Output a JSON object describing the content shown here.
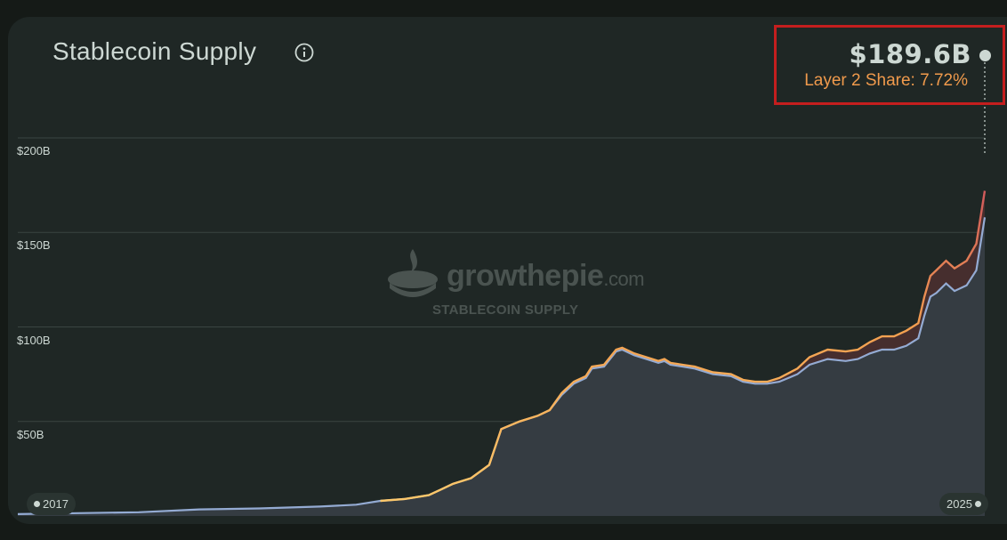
{
  "header": {
    "title": "Stablecoin Supply",
    "info_icon": "info-icon"
  },
  "highlight": {
    "value": "$189.6B",
    "layer2_share": "Layer 2 Share: 7.72%"
  },
  "watermark": {
    "brand": "growthepie",
    "brand_suffix": ".com",
    "subtitle": "STABLECOIN SUPPLY"
  },
  "timeline": {
    "start_label": "2017",
    "end_label": "2025"
  },
  "colors": {
    "background": "#1f2725",
    "text": "#cdd8d3",
    "ethereum_line": "#94abd3",
    "total_line_low": "#fdc86b",
    "total_line_high": "#d0595b",
    "share_text": "#f09a4c",
    "highlight_border": "#c41e1e"
  },
  "chart_data": {
    "type": "area",
    "title": "Stablecoin Supply",
    "ylim": [
      0,
      200
    ],
    "yunit": "$B",
    "yticks": [
      "$50B",
      "$100B",
      "$150B",
      "$200B"
    ],
    "ytick_values": [
      50,
      100,
      150,
      200
    ],
    "grid": true,
    "x_start_label": "2017",
    "x_end_label": "2025",
    "x": [
      2017.0,
      2017.5,
      2018.0,
      2018.5,
      2019.0,
      2019.5,
      2019.8,
      2020.0,
      2020.2,
      2020.4,
      2020.5,
      2020.6,
      2020.75,
      2020.9,
      2021.0,
      2021.15,
      2021.3,
      2021.4,
      2021.5,
      2021.6,
      2021.7,
      2021.75,
      2021.85,
      2021.95,
      2022.0,
      2022.1,
      2022.2,
      2022.3,
      2022.35,
      2022.4,
      2022.5,
      2022.6,
      2022.75,
      2022.9,
      2023.0,
      2023.1,
      2023.2,
      2023.3,
      2023.45,
      2023.55,
      2023.7,
      2023.85,
      2023.95,
      2024.05,
      2024.15,
      2024.25,
      2024.35,
      2024.45,
      2024.5,
      2024.55,
      2024.6,
      2024.68,
      2024.75,
      2024.85,
      2024.93,
      2025.0
    ],
    "series": [
      {
        "values": [
          1,
          1.5,
          2,
          3.5,
          4,
          5,
          6,
          8,
          9,
          11,
          14,
          17,
          20,
          27,
          46,
          50,
          53,
          56,
          64,
          70,
          73,
          78,
          79,
          87,
          88,
          85,
          83,
          81,
          82,
          80,
          79,
          78,
          75,
          74,
          71,
          70,
          70,
          71,
          75,
          80,
          83,
          82,
          83,
          86,
          88,
          88,
          90,
          94,
          106,
          116,
          118,
          123,
          119,
          122,
          130,
          158
        ]
      },
      {
        "values": [
          1,
          1.5,
          2,
          3.5,
          4,
          5,
          6,
          8,
          9,
          11,
          14,
          17,
          20,
          27,
          46,
          50,
          53,
          56,
          65,
          71,
          74,
          79,
          80,
          88,
          89,
          86,
          84,
          82,
          83,
          81,
          80,
          79,
          76,
          75,
          72,
          71,
          71,
          73,
          78,
          84,
          88,
          87,
          88,
          92,
          95,
          95,
          98,
          102,
          116,
          127,
          130,
          135,
          131,
          135,
          144,
          172
        ]
      }
    ]
  }
}
